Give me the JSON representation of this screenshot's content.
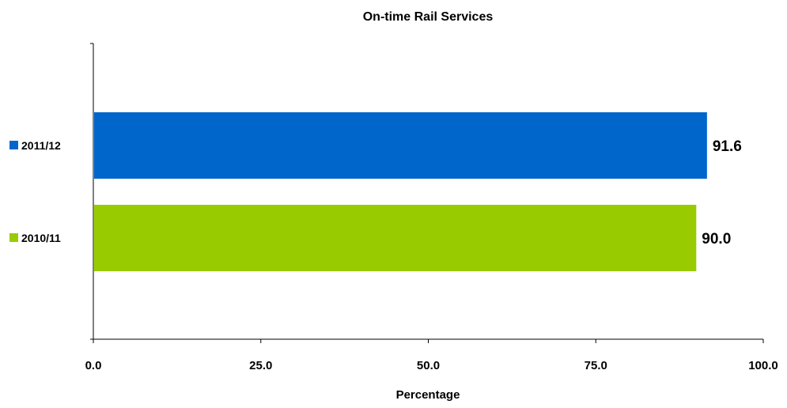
{
  "chart_data": {
    "type": "bar",
    "orientation": "horizontal",
    "title": "On-time Rail Services",
    "xlabel": "Percentage",
    "ylabel": "",
    "categories": [
      "2011/12",
      "2010/11"
    ],
    "values": [
      91.6,
      90.0
    ],
    "value_labels": [
      "91.6",
      "90.0"
    ],
    "xlim": [
      0,
      100
    ],
    "xticks": [
      0,
      25,
      50,
      75,
      100
    ],
    "xtick_labels": [
      "0.0",
      "25.0",
      "50.0",
      "75.0",
      "100.0"
    ],
    "grid": false,
    "colors": [
      "#0066CC",
      "#99CC00"
    ],
    "legend_markers": "left of category labels"
  }
}
